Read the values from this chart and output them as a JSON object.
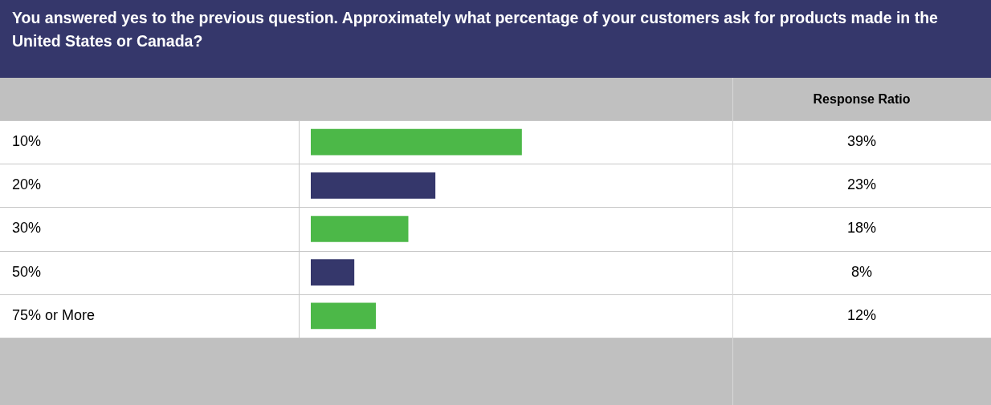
{
  "chart_data": {
    "type": "bar",
    "orientation": "horizontal",
    "title": "You answered yes to the previous question. Approximately what percentage of your customers ask for products made in the United States or Canada?",
    "annotations": [
      "Response Ratio"
    ],
    "categories": [
      "10%",
      "20%",
      "30%",
      "50%",
      "75% or More"
    ],
    "values": [
      39,
      23,
      18,
      8,
      12
    ],
    "value_labels": [
      "39%",
      "23%",
      "18%",
      "8%",
      "12%"
    ],
    "colors": [
      "#4cb848",
      "#35376b",
      "#4cb848",
      "#35376b",
      "#4cb848"
    ],
    "grid": false,
    "legend": false,
    "tick_labels": "y"
  }
}
